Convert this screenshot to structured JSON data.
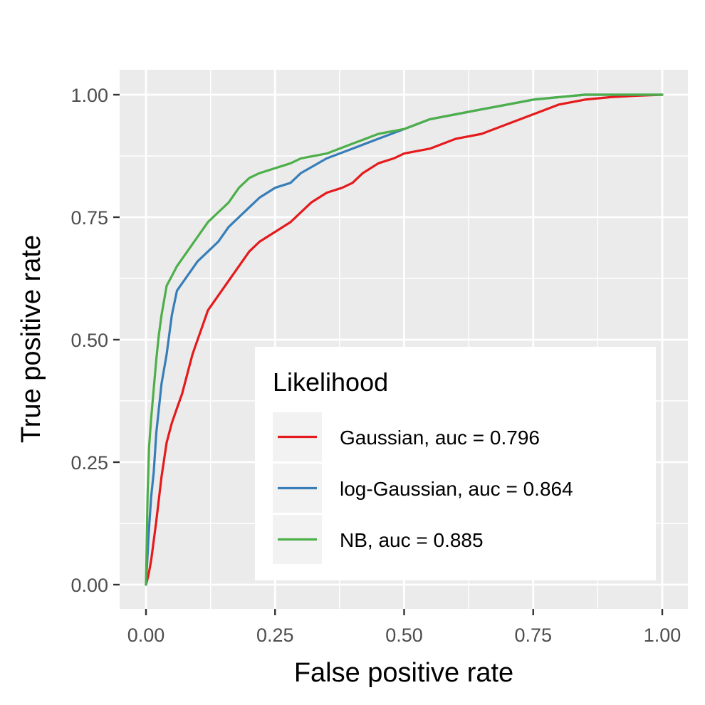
{
  "chart_data": {
    "type": "line",
    "title": "",
    "xlabel": "False positive rate",
    "ylabel": "True positive rate",
    "xlim": [
      0,
      1
    ],
    "ylim": [
      0,
      1
    ],
    "x_ticks": [
      "0.00",
      "0.25",
      "0.50",
      "0.75",
      "1.00"
    ],
    "y_ticks": [
      "0.00",
      "0.25",
      "0.50",
      "0.75",
      "1.00"
    ],
    "grid": true,
    "legend": {
      "title": "Likelihood",
      "placement": "bottom-right inside"
    },
    "series": [
      {
        "name": "Gaussian, auc = 0.796",
        "color": "#e41a1c",
        "x": [
          0,
          0.005,
          0.01,
          0.015,
          0.02,
          0.03,
          0.04,
          0.05,
          0.06,
          0.07,
          0.08,
          0.09,
          0.1,
          0.11,
          0.12,
          0.14,
          0.16,
          0.18,
          0.2,
          0.22,
          0.25,
          0.28,
          0.3,
          0.32,
          0.35,
          0.38,
          0.4,
          0.42,
          0.45,
          0.48,
          0.5,
          0.55,
          0.6,
          0.65,
          0.7,
          0.75,
          0.8,
          0.85,
          0.9,
          0.95,
          1.0
        ],
        "y": [
          0,
          0.02,
          0.05,
          0.09,
          0.13,
          0.22,
          0.29,
          0.33,
          0.36,
          0.39,
          0.43,
          0.47,
          0.5,
          0.53,
          0.56,
          0.59,
          0.62,
          0.65,
          0.68,
          0.7,
          0.72,
          0.74,
          0.76,
          0.78,
          0.8,
          0.81,
          0.82,
          0.84,
          0.86,
          0.87,
          0.88,
          0.89,
          0.91,
          0.92,
          0.94,
          0.96,
          0.98,
          0.99,
          0.995,
          0.998,
          1.0
        ]
      },
      {
        "name": "log-Gaussian, auc = 0.864",
        "color": "#377eb8",
        "x": [
          0,
          0.005,
          0.01,
          0.015,
          0.02,
          0.03,
          0.04,
          0.05,
          0.06,
          0.08,
          0.1,
          0.12,
          0.14,
          0.16,
          0.18,
          0.2,
          0.22,
          0.25,
          0.28,
          0.3,
          0.35,
          0.4,
          0.45,
          0.5,
          0.55,
          0.6,
          0.65,
          0.7,
          0.75,
          0.8,
          0.85,
          0.9,
          1.0
        ],
        "y": [
          0,
          0.1,
          0.18,
          0.23,
          0.31,
          0.41,
          0.47,
          0.55,
          0.6,
          0.63,
          0.66,
          0.68,
          0.7,
          0.73,
          0.75,
          0.77,
          0.79,
          0.81,
          0.82,
          0.84,
          0.87,
          0.89,
          0.91,
          0.93,
          0.95,
          0.96,
          0.97,
          0.98,
          0.99,
          0.995,
          1.0,
          1.0,
          1.0
        ]
      },
      {
        "name": "NB, auc = 0.885",
        "color": "#4daf4a",
        "x": [
          0,
          0.003,
          0.006,
          0.01,
          0.015,
          0.02,
          0.025,
          0.03,
          0.04,
          0.05,
          0.06,
          0.08,
          0.1,
          0.12,
          0.14,
          0.16,
          0.18,
          0.2,
          0.22,
          0.25,
          0.28,
          0.3,
          0.35,
          0.4,
          0.45,
          0.5,
          0.55,
          0.6,
          0.65,
          0.7,
          0.75,
          0.8,
          0.85,
          0.9,
          1.0
        ],
        "y": [
          0,
          0.18,
          0.28,
          0.34,
          0.4,
          0.46,
          0.51,
          0.55,
          0.61,
          0.63,
          0.65,
          0.68,
          0.71,
          0.74,
          0.76,
          0.78,
          0.81,
          0.83,
          0.84,
          0.85,
          0.86,
          0.87,
          0.88,
          0.9,
          0.92,
          0.93,
          0.95,
          0.96,
          0.97,
          0.98,
          0.99,
          0.995,
          1.0,
          1.0,
          1.0
        ]
      }
    ]
  }
}
